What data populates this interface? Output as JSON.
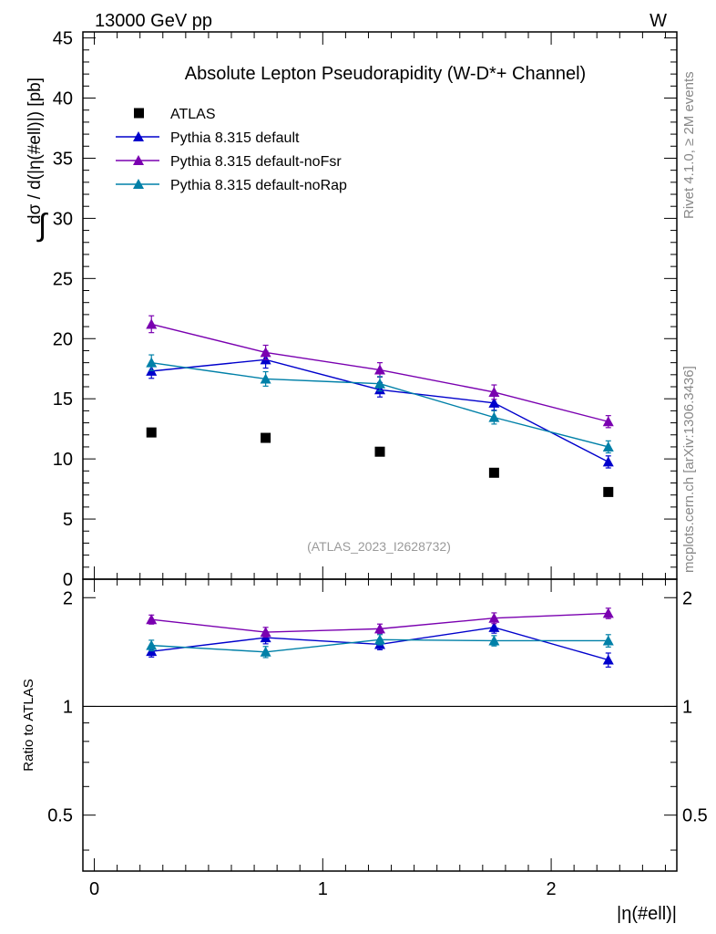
{
  "header": {
    "left": "13000 GeV pp",
    "right": "W"
  },
  "side_labels": {
    "rivet": "Rivet 4.1.0, ≥ 2M events",
    "mcplots": "mcplots.cern.ch [arXiv:1306.3436]"
  },
  "chart_data": [
    {
      "type": "line",
      "title": "Absolute Lepton Pseudorapidity (W-D*+ Channel)",
      "ylabel_integral": "∫",
      "ylabel": "dσ / d(|η(#ell)|) [pb]",
      "watermark": "(ATLAS_2023_I2628732)",
      "xlim": [
        -0.05,
        2.55
      ],
      "ylim": [
        0,
        45.5
      ],
      "yticks": [
        0,
        5,
        10,
        15,
        20,
        25,
        30,
        35,
        40,
        45
      ],
      "ytick_labels": [
        "0",
        "5",
        "10",
        "15",
        "20",
        "25",
        "30",
        "35",
        "40",
        "45"
      ],
      "x": [
        0.25,
        0.75,
        1.25,
        1.75,
        2.25
      ],
      "legend_position": "top-left",
      "series": [
        {
          "name": "ATLAS",
          "marker": "square",
          "color": "#000000",
          "values": [
            12.2,
            11.75,
            10.6,
            8.85,
            7.25
          ],
          "errors": [
            0.15,
            0.15,
            0.15,
            0.15,
            0.15
          ]
        },
        {
          "name": "Pythia 8.315 default",
          "marker": "triangle",
          "color": "#0000cc",
          "values": [
            17.3,
            18.25,
            15.75,
            14.65,
            9.75
          ],
          "errors": [
            0.6,
            0.7,
            0.6,
            0.6,
            0.5
          ]
        },
        {
          "name": "Pythia 8.315 default-noFsr",
          "marker": "triangle",
          "color": "#7a00b0",
          "values": [
            21.2,
            18.85,
            17.4,
            15.55,
            13.1
          ],
          "errors": [
            0.7,
            0.6,
            0.6,
            0.6,
            0.5
          ]
        },
        {
          "name": "Pythia 8.315 default-noRap",
          "marker": "triangle",
          "color": "#0080a8",
          "values": [
            18.0,
            16.65,
            16.25,
            13.45,
            11.0
          ],
          "errors": [
            0.65,
            0.6,
            0.6,
            0.55,
            0.5
          ]
        }
      ]
    },
    {
      "type": "line",
      "ylabel": "Ratio to ATLAS",
      "xlabel": "|η(#ell)|",
      "yscale": "log",
      "ylim": [
        0.35,
        2.25
      ],
      "yticks": [
        0.5,
        1,
        2
      ],
      "ytick_labels": [
        "0.5",
        "1",
        "2"
      ],
      "xticks": [
        0,
        1,
        2
      ],
      "xtick_labels": [
        "0",
        "1",
        "2"
      ],
      "reference_line": 1,
      "x": [
        0.25,
        0.75,
        1.25,
        1.75,
        2.25
      ],
      "series": [
        {
          "name": "Pythia 8.315 default",
          "color": "#0000cc",
          "values": [
            1.42,
            1.55,
            1.485,
            1.655,
            1.345
          ],
          "errors": [
            0.05,
            0.06,
            0.05,
            0.06,
            0.06
          ]
        },
        {
          "name": "Pythia 8.315 default-noFsr",
          "color": "#7a00b0",
          "values": [
            1.74,
            1.605,
            1.64,
            1.755,
            1.81
          ],
          "errors": [
            0.05,
            0.05,
            0.05,
            0.06,
            0.06
          ]
        },
        {
          "name": "Pythia 8.315 default-noRap",
          "color": "#0080a8",
          "values": [
            1.475,
            1.415,
            1.53,
            1.52,
            1.52
          ],
          "errors": [
            0.05,
            0.05,
            0.05,
            0.05,
            0.06
          ]
        }
      ]
    }
  ]
}
